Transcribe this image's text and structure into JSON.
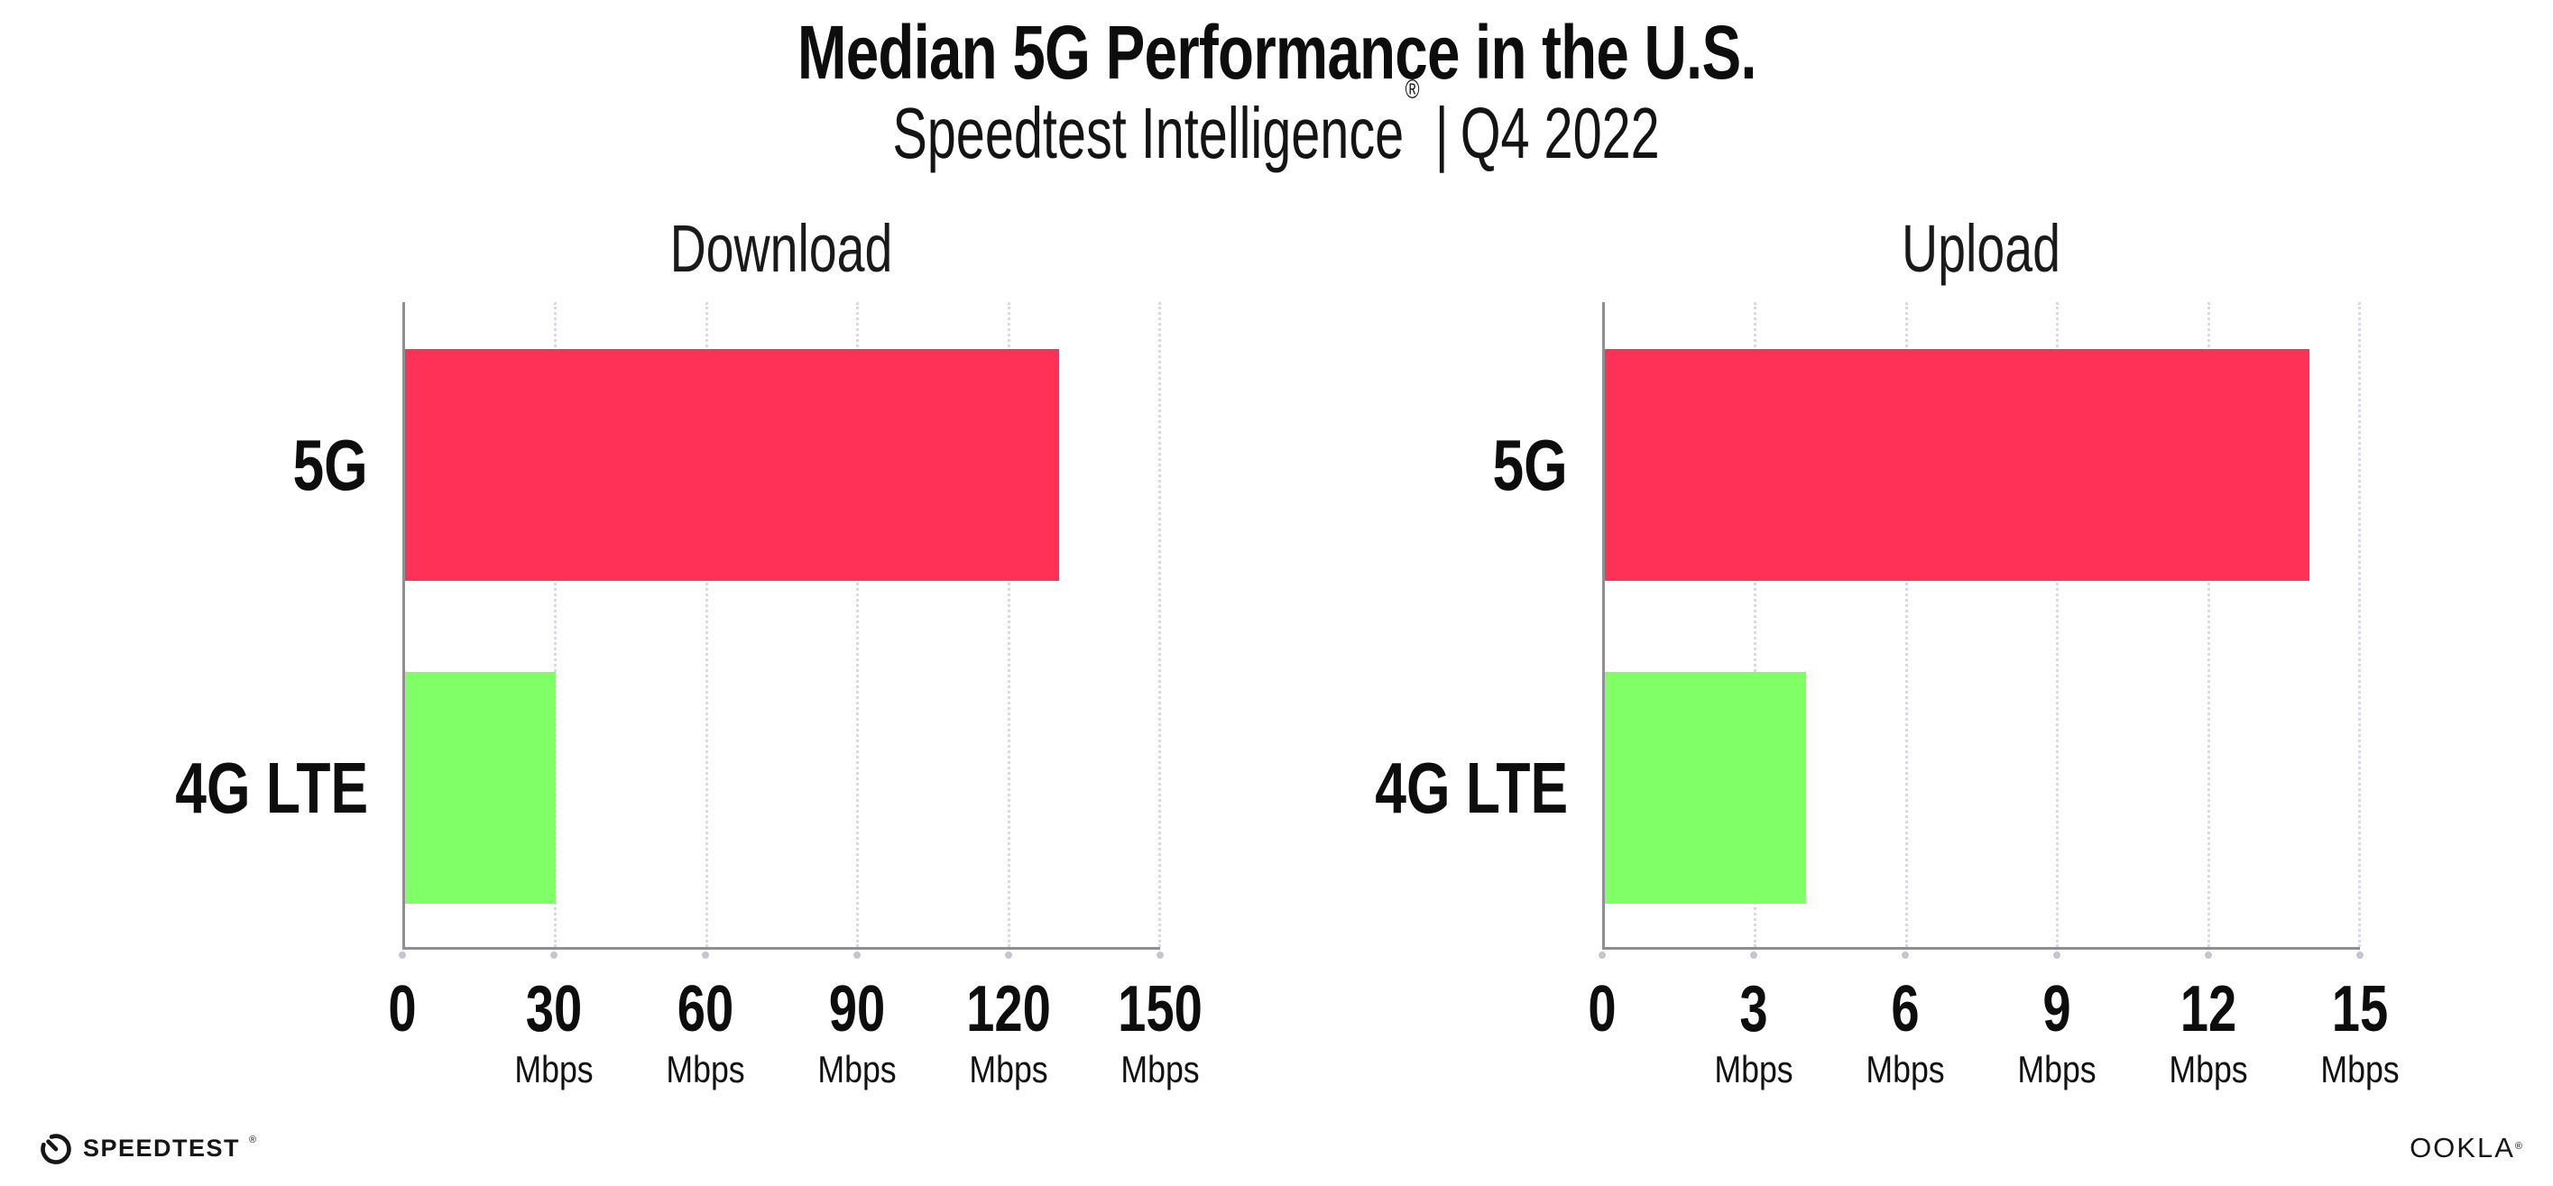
{
  "header": {
    "title": "Median 5G Performance in the U.S.",
    "subtitle_brand": "Speedtest Intelligence",
    "subtitle_registered": "®",
    "subtitle_separator": "|",
    "subtitle_period": "Q4 2022"
  },
  "footer": {
    "speedtest_wordmark": "SPEEDTEST",
    "speedtest_registered": "®",
    "speedtest_icon": "speedometer-gauge-icon",
    "ookla_wordmark": "OOKLA",
    "ookla_registered": "®"
  },
  "colors": {
    "bar_5g": "#ff3156",
    "bar_4g_lte": "#80ff66",
    "axis": "#8f8f8f",
    "gridline": "#d9d9e2",
    "text": "#0d0d0d"
  },
  "chart_data": [
    {
      "type": "bar",
      "orientation": "horizontal",
      "title": "Download",
      "categories": [
        "5G",
        "4G LTE"
      ],
      "values": [
        130,
        30
      ],
      "unit": "Mbps",
      "xlabel": "",
      "ylabel": "",
      "xlim": [
        0,
        150
      ],
      "xticks": [
        0,
        30,
        60,
        90,
        120,
        150
      ],
      "series_colors": [
        "#ff3156",
        "#80ff66"
      ],
      "grid": "vertical dotted gridlines at each tick",
      "legend": "none"
    },
    {
      "type": "bar",
      "orientation": "horizontal",
      "title": "Upload",
      "categories": [
        "5G",
        "4G LTE"
      ],
      "values": [
        14,
        4
      ],
      "unit": "Mbps",
      "xlabel": "",
      "ylabel": "",
      "xlim": [
        0,
        15
      ],
      "xticks": [
        0,
        3,
        6,
        9,
        12,
        15
      ],
      "series_colors": [
        "#ff3156",
        "#80ff66"
      ],
      "grid": "vertical dotted gridlines at each tick",
      "legend": "none"
    }
  ]
}
